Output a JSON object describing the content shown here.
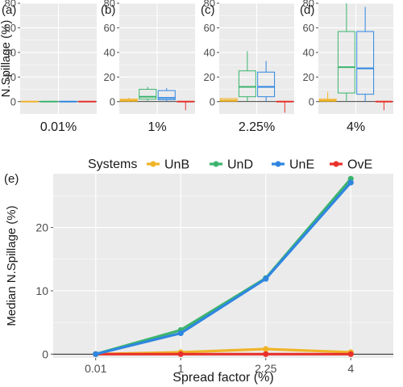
{
  "colors": {
    "UnB": "#f0b428",
    "UnD": "#3cb46e",
    "UnE": "#2f86e0",
    "OvE": "#e8312a",
    "panel_bg": "#ebebeb",
    "grid": "#ffffff",
    "text": "#1a1a1a",
    "tick": "#4d4d4d"
  },
  "chart_data": [
    {
      "type": "box",
      "panel_tag": "(a)",
      "strip_label": "0.01%",
      "ylabel": "N.Spillage (%)",
      "ylim": [
        -10,
        80
      ],
      "yticks": [
        0,
        20,
        40,
        60,
        80
      ],
      "reference_line": 0,
      "series": [
        {
          "name": "UnB",
          "box": {
            "min": 0,
            "q1": 0,
            "median": 0,
            "q3": 0,
            "max": 0
          }
        },
        {
          "name": "UnD",
          "box": {
            "min": 0,
            "q1": 0,
            "median": 0,
            "q3": 0,
            "max": 0
          }
        },
        {
          "name": "UnE",
          "box": {
            "min": 0,
            "q1": 0,
            "median": 0,
            "q3": 0,
            "max": 0
          }
        },
        {
          "name": "OvE",
          "box": {
            "min": 0,
            "q1": 0,
            "median": 0,
            "q3": 0,
            "max": 0
          }
        }
      ]
    },
    {
      "type": "box",
      "panel_tag": "(b)",
      "strip_label": "1%",
      "ylim": [
        -10,
        80
      ],
      "yticks": [
        0,
        20,
        40,
        60,
        80
      ],
      "reference_line": 0,
      "series": [
        {
          "name": "UnB",
          "box": {
            "min": 0,
            "q1": 0.3,
            "median": 1,
            "q3": 2,
            "max": 3
          }
        },
        {
          "name": "UnD",
          "box": {
            "min": 0,
            "q1": 2,
            "median": 4,
            "q3": 10,
            "max": 12
          }
        },
        {
          "name": "UnE",
          "box": {
            "min": 0,
            "q1": 1.5,
            "median": 3,
            "q3": 9,
            "max": 11
          }
        },
        {
          "name": "OvE",
          "box": {
            "min": -7,
            "q1": 0,
            "median": 0,
            "q3": 0,
            "max": 0
          }
        }
      ]
    },
    {
      "type": "box",
      "panel_tag": "(c)",
      "strip_label": "2.25%",
      "ylim": [
        -10,
        80
      ],
      "yticks": [
        0,
        20,
        40,
        60,
        80
      ],
      "reference_line": 0,
      "series": [
        {
          "name": "UnB",
          "box": {
            "min": 0,
            "q1": 0.3,
            "median": 1,
            "q3": 2.5,
            "max": 3
          }
        },
        {
          "name": "UnD",
          "box": {
            "min": 0,
            "q1": 4,
            "median": 12,
            "q3": 25,
            "max": 41
          }
        },
        {
          "name": "UnE",
          "box": {
            "min": 0,
            "q1": 4,
            "median": 12,
            "q3": 24,
            "max": 33
          }
        },
        {
          "name": "OvE",
          "box": {
            "min": -9,
            "q1": 0,
            "median": 0,
            "q3": 0,
            "max": 0
          }
        }
      ]
    },
    {
      "type": "box",
      "panel_tag": "(d)",
      "strip_label": "4%",
      "ylim": [
        -10,
        80
      ],
      "yticks": [
        0,
        20,
        40,
        60,
        80
      ],
      "reference_line": 0,
      "series": [
        {
          "name": "UnB",
          "box": {
            "min": 0,
            "q1": 0.3,
            "median": 1,
            "q3": 2,
            "max": 8
          }
        },
        {
          "name": "UnD",
          "box": {
            "min": 0,
            "q1": 7,
            "median": 28,
            "q3": 57,
            "max": 80
          }
        },
        {
          "name": "UnE",
          "box": {
            "min": 0,
            "q1": 6,
            "median": 27,
            "q3": 57,
            "max": 77
          }
        },
        {
          "name": "OvE",
          "box": {
            "min": -7,
            "q1": 0,
            "median": 0,
            "q3": 0,
            "max": 0
          }
        }
      ]
    },
    {
      "type": "line",
      "panel_tag": "(e)",
      "legend_title": "Systems",
      "legend": "top",
      "categories": [
        "0.01",
        "1",
        "2.25",
        "4"
      ],
      "xlabel": "Spread factor (%)",
      "ylabel": "Median N.Spillage (%)",
      "ylim": [
        -0.6,
        28.5
      ],
      "yticks": [
        0,
        10,
        20
      ],
      "reference_line": 0,
      "series": [
        {
          "name": "UnB",
          "values": [
            0,
            0.3,
            0.8,
            0.3
          ]
        },
        {
          "name": "UnD",
          "values": [
            0,
            3.8,
            12,
            27.7
          ]
        },
        {
          "name": "UnE",
          "values": [
            0,
            3.3,
            11.9,
            27.1
          ]
        },
        {
          "name": "OvE",
          "values": [
            0,
            0,
            0,
            0
          ]
        }
      ]
    }
  ]
}
